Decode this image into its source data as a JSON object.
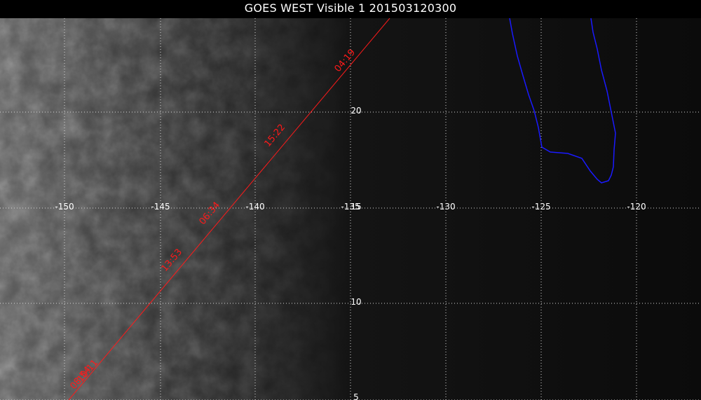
{
  "title": "GOES WEST Visible 1 201503120300",
  "longitude_labels": [
    "-150",
    "-145",
    "-140",
    "-135",
    "-130",
    "-125",
    "-120"
  ],
  "latitude_labels": [
    "20",
    "15",
    "10",
    "5"
  ],
  "track_labels": [
    "04:19",
    "15:22",
    "06:34",
    "13:53",
    "10:11",
    "08:54"
  ],
  "colors": {
    "background": "#0b0b0b",
    "grid": "#d8d8d8",
    "label": "#ffffff",
    "track": "#ff1a1a",
    "coastline": "#1a1aff"
  }
}
